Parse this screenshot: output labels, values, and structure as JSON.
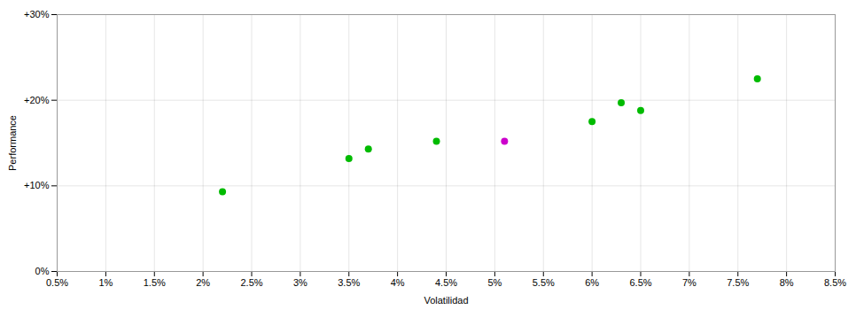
{
  "chart_data": {
    "type": "scatter",
    "xlabel": "Volatilidad",
    "ylabel": "Performance",
    "xlim": [
      0.005,
      0.085
    ],
    "ylim": [
      0.0,
      0.3
    ],
    "xticks": [
      {
        "value": 0.005,
        "label": "0.5%"
      },
      {
        "value": 0.01,
        "label": "1%"
      },
      {
        "value": 0.015,
        "label": "1.5%"
      },
      {
        "value": 0.02,
        "label": "2%"
      },
      {
        "value": 0.025,
        "label": "2.5%"
      },
      {
        "value": 0.03,
        "label": "3%"
      },
      {
        "value": 0.035,
        "label": "3.5%"
      },
      {
        "value": 0.04,
        "label": "4%"
      },
      {
        "value": 0.045,
        "label": "4.5%"
      },
      {
        "value": 0.05,
        "label": "5%"
      },
      {
        "value": 0.055,
        "label": "5.5%"
      },
      {
        "value": 0.06,
        "label": "6%"
      },
      {
        "value": 0.065,
        "label": "6.5%"
      },
      {
        "value": 0.07,
        "label": "7%"
      },
      {
        "value": 0.075,
        "label": "7.5%"
      },
      {
        "value": 0.08,
        "label": "8%"
      },
      {
        "value": 0.085,
        "label": "8.5%"
      }
    ],
    "yticks": [
      {
        "value": 0.0,
        "label": "0%"
      },
      {
        "value": 0.1,
        "label": "+10%"
      },
      {
        "value": 0.2,
        "label": "+20%"
      },
      {
        "value": 0.3,
        "label": "+30%"
      }
    ],
    "grid": true,
    "series": [
      {
        "color": "#00bb00",
        "x": [
          0.022,
          0.035,
          0.037,
          0.044,
          0.06,
          0.063,
          0.065,
          0.077
        ],
        "values": [
          0.093,
          0.132,
          0.143,
          0.152,
          0.175,
          0.197,
          0.188,
          0.225
        ]
      },
      {
        "color": "#cc00cc",
        "x": [
          0.051
        ],
        "values": [
          0.152
        ]
      }
    ]
  }
}
